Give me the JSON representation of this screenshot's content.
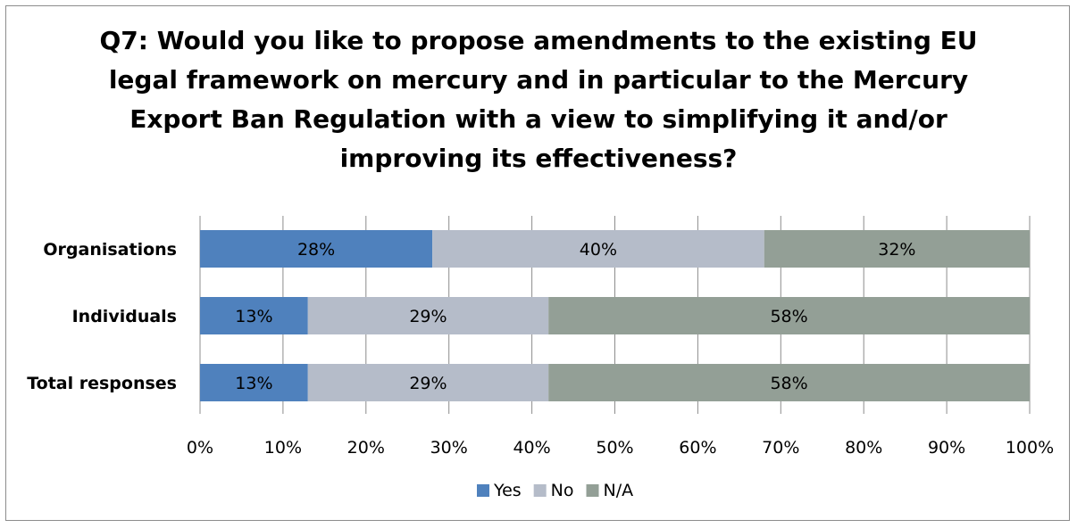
{
  "chart_data": {
    "type": "bar",
    "orientation": "horizontal",
    "stacked": true,
    "percent_stacked": true,
    "title": "Q7: Would you like to propose amendments to the existing EU legal framework on mercury and in particular to the Mercury Export Ban Regulation with a view to simplifying it and/or improving its effectiveness?",
    "categories": [
      "Organisations",
      "Individuals",
      "Total responses"
    ],
    "series": [
      {
        "name": "Yes",
        "values": [
          28,
          13,
          13
        ],
        "labels": [
          "28%",
          "13%",
          "13%"
        ],
        "color": "#4f81bd"
      },
      {
        "name": "No",
        "values": [
          40,
          29,
          29
        ],
        "labels": [
          "40%",
          "29%",
          "29%"
        ],
        "color": "#b5bcc9"
      },
      {
        "name": "N/A",
        "values": [
          32,
          58,
          58
        ],
        "labels": [
          "32%",
          "58%",
          "58%"
        ],
        "color": "#939f96"
      }
    ],
    "xlim": [
      0,
      100
    ],
    "xticks": [
      "0%",
      "10%",
      "20%",
      "30%",
      "40%",
      "50%",
      "60%",
      "70%",
      "80%",
      "90%",
      "100%"
    ],
    "grid": true,
    "legend_position": "bottom"
  }
}
